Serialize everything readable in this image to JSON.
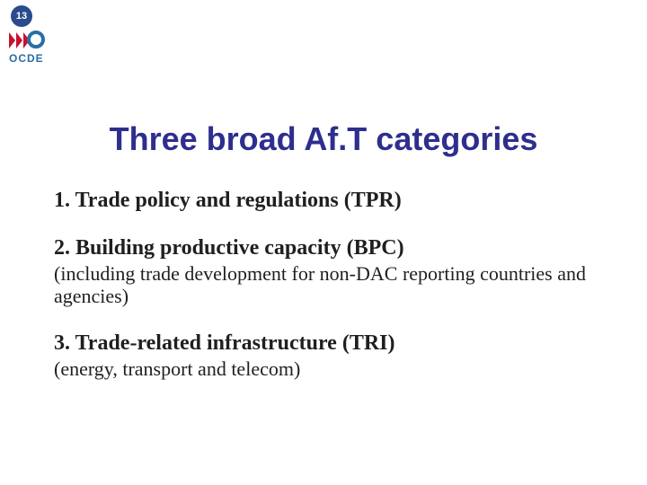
{
  "page_number": "13",
  "badge": {
    "bg": "#2a4b8d",
    "fg": "#ffffff"
  },
  "logo": {
    "chevron_color": "#c8102e",
    "ring_color": "#2a6ea6",
    "text": "OCDE",
    "text_color": "#2a6ea6"
  },
  "title": {
    "text": "Three broad Af.T categories",
    "color": "#2e2e8f",
    "fontsize": 36
  },
  "body_text_color": "#1f1f1f",
  "items": [
    {
      "head": "1. Trade policy and regulations (TPR)",
      "head_fontsize": 24,
      "sub": "",
      "sub_fontsize": 22
    },
    {
      "head": "2. Building productive capacity (BPC)",
      "head_fontsize": 24,
      "sub": "(including trade development for non-DAC reporting countries and agencies)",
      "sub_fontsize": 22
    },
    {
      "head": "3. Trade-related infrastructure (TRI)",
      "head_fontsize": 24,
      "sub": "(energy, transport and telecom)",
      "sub_fontsize": 22
    }
  ]
}
